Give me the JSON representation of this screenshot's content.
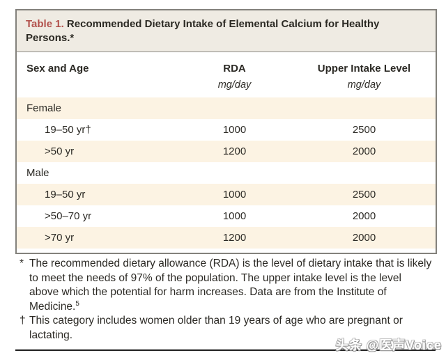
{
  "table": {
    "number_label": "Table 1.",
    "title": "Recommended Dietary Intake of Elemental Calcium for Healthy Persons.*",
    "columns": [
      "Sex and Age",
      "RDA",
      "Upper Intake Level"
    ],
    "unit": "mg/day",
    "rows": [
      {
        "label": "Female",
        "type": "group",
        "rda": "",
        "upper": ""
      },
      {
        "label": "19–50 yr†",
        "type": "sub",
        "rda": "1000",
        "upper": "2500"
      },
      {
        "label": ">50 yr",
        "type": "sub",
        "rda": "1200",
        "upper": "2000"
      },
      {
        "label": "Male",
        "type": "group",
        "rda": "",
        "upper": ""
      },
      {
        "label": "19–50 yr",
        "type": "sub",
        "rda": "1000",
        "upper": "2500"
      },
      {
        "label": ">50–70 yr",
        "type": "sub",
        "rda": "1000",
        "upper": "2000"
      },
      {
        "label": ">70 yr",
        "type": "sub",
        "rda": "1200",
        "upper": "2000"
      }
    ]
  },
  "footnotes": [
    {
      "marker": "*",
      "text": "The recommended dietary allowance (RDA) is the level of dietary intake that is likely to meet the needs of 97% of the population. The upper intake level is the level above which the potential for harm increases. Data are from the Institute of Medicine.",
      "reference_sup": "5"
    },
    {
      "marker": "†",
      "text": "This category includes women older than 19 years of age who are pregnant or lactating.",
      "reference_sup": ""
    }
  ],
  "watermark": {
    "text": "头条 @医声Voice"
  },
  "colors": {
    "title_accent": "#b2514c",
    "title_bar_bg": "#efebe3",
    "row_stripe": "#fcf3e3",
    "table_border": "#83817c",
    "body_text": "#2c2a25"
  }
}
